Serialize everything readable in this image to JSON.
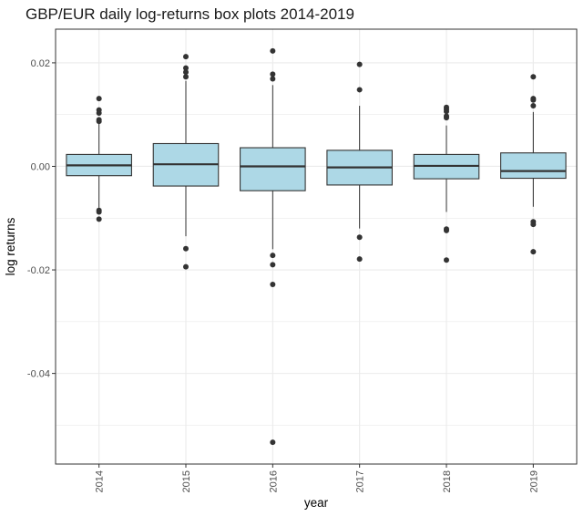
{
  "chart_data": {
    "type": "box",
    "title": "GBP/EUR daily log-returns box plots 2014-2019",
    "xlabel": "year",
    "ylabel": "log returns",
    "ylim": [
      -0.0575,
      0.0265
    ],
    "y_ticks": [
      {
        "value": 0.02,
        "label": "0.02"
      },
      {
        "value": 0.0,
        "label": "0.00"
      },
      {
        "value": -0.02,
        "label": "-0.02"
      },
      {
        "value": -0.04,
        "label": "-0.04"
      }
    ],
    "categories": [
      "2014",
      "2015",
      "2016",
      "2017",
      "2018",
      "2019"
    ],
    "boxes": [
      {
        "year": "2014",
        "q1": -0.0018,
        "median": 0.0002,
        "q3": 0.0023,
        "whisker_low": -0.008,
        "whisker_high": 0.0084,
        "outliers": [
          0.0131,
          0.0109,
          0.0103,
          0.009,
          0.0087,
          -0.0085,
          -0.0088,
          -0.0102
        ]
      },
      {
        "year": "2015",
        "q1": -0.0038,
        "median": 0.0004,
        "q3": 0.0044,
        "whisker_low": -0.0135,
        "whisker_high": 0.0165,
        "outliers": [
          0.0212,
          0.019,
          0.0182,
          0.0173,
          -0.0159,
          -0.0194
        ]
      },
      {
        "year": "2016",
        "q1": -0.0047,
        "median": 0.0,
        "q3": 0.0036,
        "whisker_low": -0.016,
        "whisker_high": 0.0157,
        "outliers": [
          0.0223,
          0.0178,
          0.0169,
          -0.0172,
          -0.019,
          -0.0228,
          -0.0533
        ]
      },
      {
        "year": "2017",
        "q1": -0.0036,
        "median": -0.0002,
        "q3": 0.0031,
        "whisker_low": -0.012,
        "whisker_high": 0.0117,
        "outliers": [
          0.0197,
          0.0148,
          -0.0137,
          -0.0179
        ]
      },
      {
        "year": "2018",
        "q1": -0.0024,
        "median": 0.0001,
        "q3": 0.0023,
        "whisker_low": -0.0088,
        "whisker_high": 0.0079,
        "outliers": [
          0.0114,
          0.011,
          0.0106,
          0.0097,
          0.0094,
          -0.0121,
          -0.0124,
          -0.0181
        ]
      },
      {
        "year": "2019",
        "q1": -0.0023,
        "median": -0.0009,
        "q3": 0.0026,
        "whisker_low": -0.0078,
        "whisker_high": 0.0105,
        "outliers": [
          0.0173,
          0.0131,
          0.0128,
          0.0117,
          -0.0107,
          -0.0112,
          -0.0165
        ]
      }
    ],
    "grid": true,
    "legend": "none",
    "colors": {
      "box_fill": "#add8e6",
      "box_stroke": "#333333",
      "outlier": "#333333",
      "panel_border": "#333333",
      "grid": "#ebebeb"
    }
  }
}
